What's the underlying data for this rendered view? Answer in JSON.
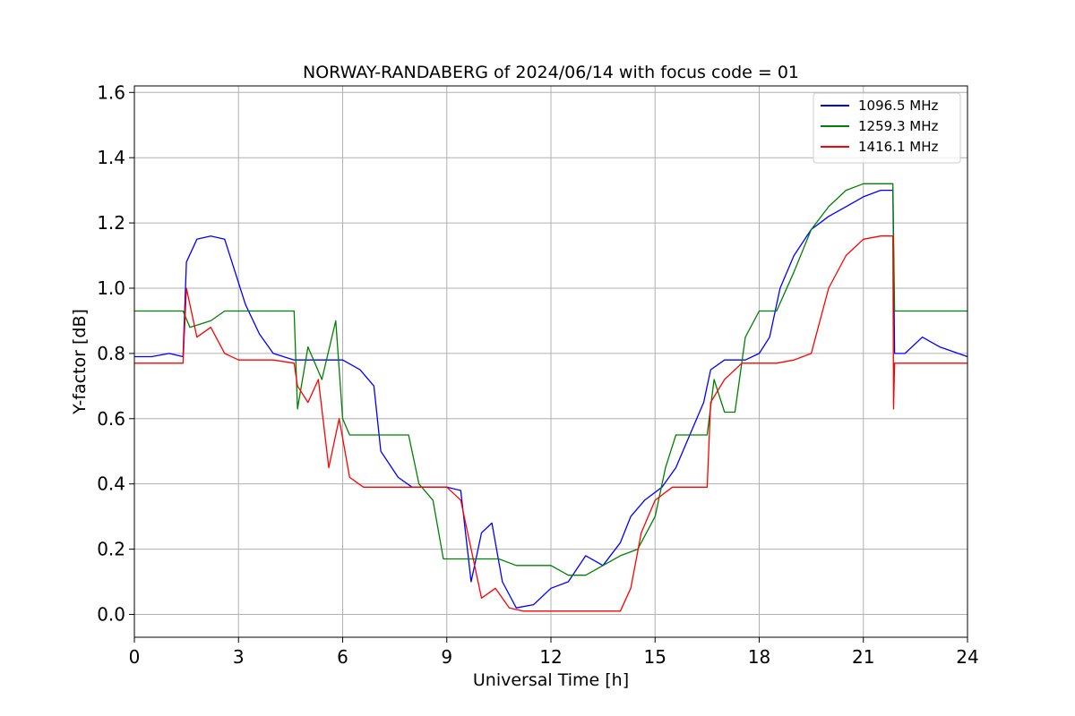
{
  "chart_data": {
    "type": "line",
    "title": "NORWAY-RANDABERG of 2024/06/14 with focus code = 01",
    "xlabel": "Universal Time [h]",
    "ylabel": "Y-factor [dB]",
    "xlim": [
      0,
      24
    ],
    "ylim": [
      -0.07,
      1.62
    ],
    "xticks": [
      0,
      3,
      6,
      9,
      12,
      15,
      18,
      21,
      24
    ],
    "yticks": [
      0.0,
      0.2,
      0.4,
      0.6,
      0.8,
      1.0,
      1.2,
      1.4,
      1.6
    ],
    "xtick_labels": [
      "0",
      "3",
      "6",
      "9",
      "12",
      "15",
      "18",
      "21",
      "24"
    ],
    "ytick_labels": [
      "0.0",
      "0.2",
      "0.4",
      "0.6",
      "0.8",
      "1.0",
      "1.2",
      "1.4",
      "1.6"
    ],
    "grid": true,
    "legend_position": "top-right",
    "series": [
      {
        "name": "1096.5 MHz",
        "color": "#0000ff",
        "x": [
          0,
          0.5,
          1.0,
          1.4,
          1.5,
          1.8,
          2.2,
          2.6,
          2.9,
          3.2,
          3.6,
          4.0,
          4.6,
          5.2,
          5.6,
          6.0,
          6.5,
          6.9,
          7.1,
          7.6,
          8.0,
          8.6,
          9.0,
          9.4,
          9.7,
          10.0,
          10.3,
          10.6,
          11.0,
          11.5,
          12.0,
          12.5,
          13.0,
          13.5,
          14.0,
          14.3,
          14.7,
          15.2,
          15.6,
          16.0,
          16.4,
          16.6,
          17.0,
          17.6,
          18.0,
          18.3,
          18.6,
          19.0,
          19.5,
          20.0,
          20.5,
          21.0,
          21.5,
          21.85,
          21.9,
          22.2,
          22.7,
          23.2,
          24.0
        ],
        "y": [
          0.79,
          0.79,
          0.8,
          0.79,
          1.08,
          1.15,
          1.16,
          1.15,
          1.05,
          0.95,
          0.86,
          0.8,
          0.78,
          0.78,
          0.78,
          0.78,
          0.75,
          0.7,
          0.5,
          0.42,
          0.39,
          0.39,
          0.39,
          0.38,
          0.1,
          0.25,
          0.28,
          0.1,
          0.02,
          0.03,
          0.08,
          0.1,
          0.18,
          0.15,
          0.22,
          0.3,
          0.35,
          0.39,
          0.45,
          0.55,
          0.65,
          0.75,
          0.78,
          0.78,
          0.8,
          0.85,
          1.0,
          1.1,
          1.18,
          1.22,
          1.25,
          1.28,
          1.3,
          1.3,
          0.8,
          0.8,
          0.85,
          0.82,
          0.79
        ]
      },
      {
        "name": "1259.3 MHz",
        "color": "#008000",
        "x": [
          0,
          0.5,
          1.0,
          1.4,
          1.6,
          2.2,
          2.6,
          2.9,
          3.2,
          3.6,
          4.0,
          4.6,
          4.7,
          5.0,
          5.4,
          5.8,
          6.0,
          6.2,
          6.6,
          7.0,
          7.5,
          7.9,
          8.2,
          8.6,
          8.9,
          9.0,
          9.5,
          10.0,
          10.5,
          11.0,
          11.5,
          12.0,
          12.5,
          13.0,
          13.5,
          14.0,
          14.5,
          15.0,
          15.3,
          15.6,
          16.0,
          16.5,
          16.7,
          17.0,
          17.3,
          17.6,
          18.0,
          18.5,
          19.0,
          19.5,
          20.0,
          20.5,
          21.0,
          21.5,
          21.85,
          21.9,
          22.5,
          23.0,
          24.0
        ],
        "y": [
          0.93,
          0.93,
          0.93,
          0.93,
          0.88,
          0.9,
          0.93,
          0.93,
          0.93,
          0.93,
          0.93,
          0.93,
          0.63,
          0.82,
          0.72,
          0.9,
          0.6,
          0.55,
          0.55,
          0.55,
          0.55,
          0.55,
          0.4,
          0.35,
          0.17,
          0.17,
          0.17,
          0.17,
          0.17,
          0.15,
          0.15,
          0.15,
          0.12,
          0.12,
          0.15,
          0.18,
          0.2,
          0.3,
          0.45,
          0.55,
          0.55,
          0.55,
          0.72,
          0.62,
          0.62,
          0.85,
          0.93,
          0.93,
          1.05,
          1.18,
          1.25,
          1.3,
          1.32,
          1.32,
          1.32,
          0.93,
          0.93,
          0.93,
          0.93
        ]
      },
      {
        "name": "1416.1 MHz",
        "color": "#ff0000",
        "x": [
          0,
          0.5,
          1.0,
          1.4,
          1.5,
          1.8,
          2.2,
          2.6,
          3.0,
          3.5,
          4.0,
          4.6,
          4.7,
          5.0,
          5.3,
          5.6,
          5.9,
          6.2,
          6.6,
          7.0,
          7.5,
          8.0,
          8.5,
          9.0,
          9.4,
          9.8,
          10.0,
          10.4,
          10.8,
          11.2,
          11.6,
          12.0,
          12.5,
          13.0,
          13.5,
          14.0,
          14.3,
          14.6,
          15.0,
          15.5,
          16.0,
          16.5,
          16.6,
          17.0,
          17.5,
          18.0,
          18.5,
          19.0,
          19.5,
          20.0,
          20.5,
          21.0,
          21.5,
          21.85,
          21.87,
          21.9,
          22.3,
          23.0,
          24.0
        ],
        "y": [
          0.77,
          0.77,
          0.77,
          0.77,
          1.0,
          0.85,
          0.88,
          0.8,
          0.78,
          0.78,
          0.78,
          0.77,
          0.7,
          0.65,
          0.72,
          0.45,
          0.6,
          0.42,
          0.39,
          0.39,
          0.39,
          0.39,
          0.39,
          0.39,
          0.35,
          0.15,
          0.05,
          0.08,
          0.02,
          0.01,
          0.01,
          0.01,
          0.01,
          0.01,
          0.01,
          0.01,
          0.08,
          0.25,
          0.35,
          0.39,
          0.39,
          0.39,
          0.65,
          0.72,
          0.77,
          0.77,
          0.77,
          0.78,
          0.8,
          1.0,
          1.1,
          1.15,
          1.16,
          1.16,
          0.63,
          0.77,
          0.77,
          0.77,
          0.77
        ]
      }
    ]
  }
}
